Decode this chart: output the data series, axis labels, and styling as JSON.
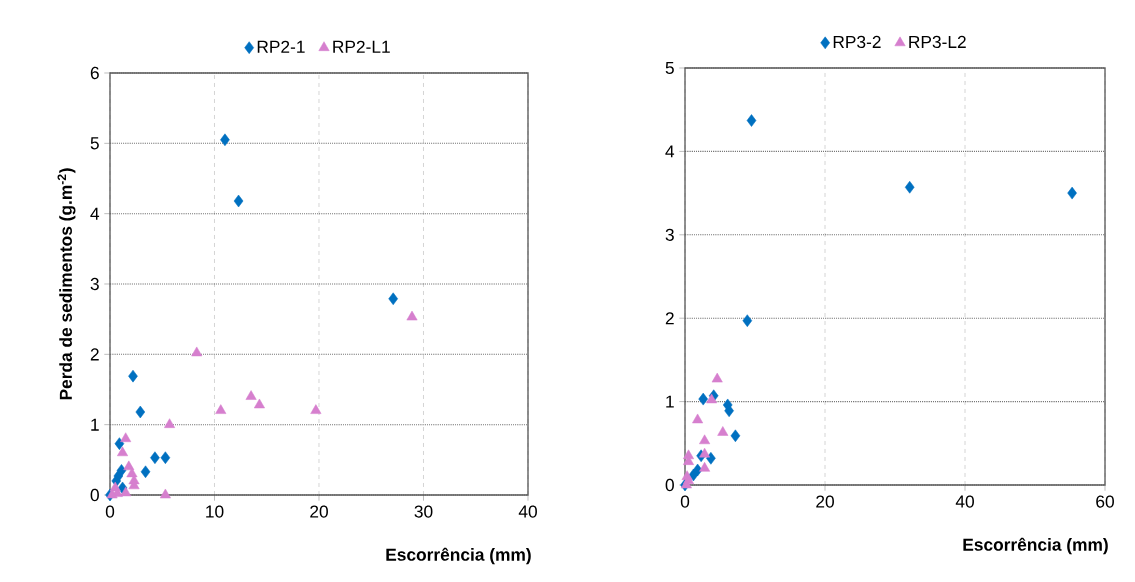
{
  "chart_data": [
    {
      "type": "scatter",
      "xlabel": "Escorrência (mm)",
      "ylabel": "Perda de sedimentos (g.m$^{-2}$)",
      "xlim": [
        0,
        40
      ],
      "ylim": [
        0,
        6
      ],
      "xticks": [
        0,
        10,
        20,
        30,
        40
      ],
      "yticks": [
        0,
        1,
        2,
        3,
        4,
        5,
        6
      ],
      "grid": true,
      "legend": "top",
      "series": [
        {
          "name": "RP2-1",
          "color": "#0070c0",
          "marker": "diamond",
          "x": [
            11,
            12.3,
            27.1,
            2.2,
            2.9,
            0.9,
            4.3,
            5.3,
            3.4,
            1.1,
            0.8,
            0.6,
            1.2,
            0
          ],
          "values": [
            5.05,
            4.18,
            2.79,
            1.69,
            1.18,
            0.73,
            0.53,
            0.53,
            0.33,
            0.35,
            0.27,
            0.2,
            0.1,
            0
          ]
        },
        {
          "name": "RP2-L1",
          "color": "#d67fce",
          "marker": "triangle",
          "x": [
            8.3,
            28.9,
            10.6,
            13.5,
            14.3,
            19.7,
            5.7,
            1.5,
            1.2,
            1.8,
            2.1,
            2.3,
            2.3,
            5.3,
            0.5,
            0.7,
            1.5,
            0.2
          ],
          "values": [
            2.02,
            2.53,
            1.2,
            1.4,
            1.28,
            1.2,
            1.0,
            0.8,
            0.6,
            0.4,
            0.3,
            0.2,
            0.13,
            0,
            0.1,
            0.02,
            0.03,
            0
          ]
        }
      ]
    },
    {
      "type": "scatter",
      "xlabel": "Escorrência (mm)",
      "xlim": [
        0,
        60
      ],
      "ylim": [
        0,
        5
      ],
      "xticks": [
        0,
        20,
        40,
        60
      ],
      "yticks": [
        0,
        1,
        2,
        3,
        4,
        5
      ],
      "grid": true,
      "legend": "top",
      "series": [
        {
          "name": "RP3-2",
          "color": "#0070c0",
          "marker": "diamond",
          "x": [
            9.5,
            32.1,
            55.3,
            8.9,
            2.6,
            4.1,
            6.1,
            6.3,
            7.2,
            2.3,
            3.7,
            1.8,
            1.2,
            0
          ],
          "values": [
            4.37,
            3.57,
            3.5,
            1.97,
            1.03,
            1.07,
            0.96,
            0.89,
            0.59,
            0.35,
            0.32,
            0.18,
            0.12,
            0
          ]
        },
        {
          "name": "RP3-L2",
          "color": "#d67fce",
          "marker": "triangle",
          "x": [
            4.6,
            3.8,
            1.8,
            5.4,
            2.8,
            2.8,
            2.8,
            0.5,
            0.5,
            0.3,
            0.2,
            0.5
          ],
          "values": [
            1.27,
            1.02,
            0.78,
            0.63,
            0.53,
            0.37,
            0.2,
            0.35,
            0.28,
            0.1,
            0,
            0.05
          ]
        }
      ]
    }
  ]
}
